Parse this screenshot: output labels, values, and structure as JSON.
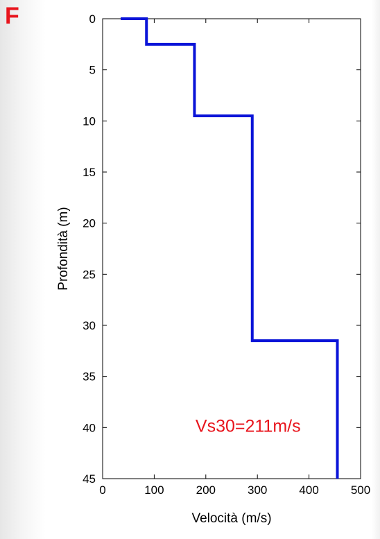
{
  "panel_label": "F",
  "chart_data": {
    "type": "line",
    "title": "",
    "xlabel": "Velocità (m/s)",
    "ylabel": "Profondità (m)",
    "xlim": [
      0,
      500
    ],
    "ylim": [
      0,
      45
    ],
    "y_inverted": true,
    "x_ticks": [
      0,
      100,
      200,
      300,
      400,
      500
    ],
    "y_ticks": [
      0,
      5,
      10,
      15,
      20,
      25,
      30,
      35,
      40,
      45
    ],
    "grid": false,
    "line_color": "#0a14d8",
    "series": [
      {
        "points": [
          {
            "velocity": 35,
            "depth": 0
          },
          {
            "velocity": 85,
            "depth": 0
          },
          {
            "velocity": 85,
            "depth": 2.5
          },
          {
            "velocity": 178,
            "depth": 2.5
          },
          {
            "velocity": 178,
            "depth": 9.5
          },
          {
            "velocity": 290,
            "depth": 9.5
          },
          {
            "velocity": 290,
            "depth": 31.5
          },
          {
            "velocity": 455,
            "depth": 31.5
          },
          {
            "velocity": 455,
            "depth": 45
          }
        ]
      }
    ],
    "annotations": [
      {
        "text": "Vs30=211m/s",
        "velocity": 180,
        "depth": 39.8,
        "color": "#e8141c"
      }
    ]
  }
}
